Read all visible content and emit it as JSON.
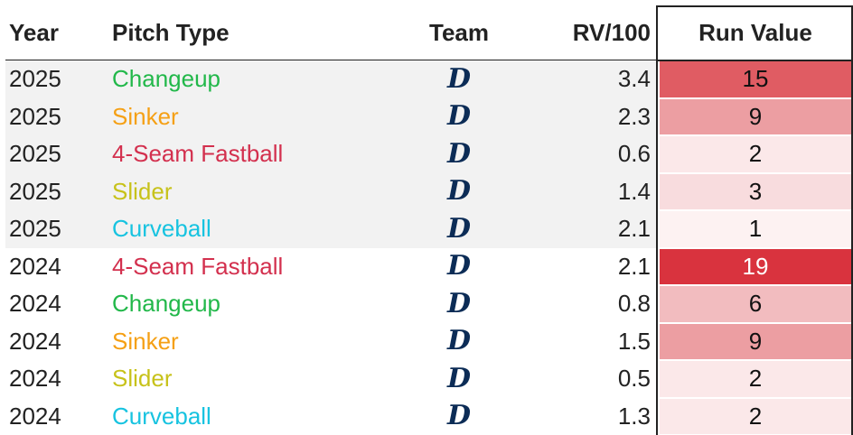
{
  "table": {
    "headers": {
      "year": "Year",
      "pitch_type": "Pitch Type",
      "team": "Team",
      "rv100": "RV/100",
      "run_value": "Run Value"
    },
    "team_logo_glyph": "D",
    "rows": [
      {
        "year": "2025",
        "pitch": "Changeup",
        "pitch_color": "#22b84a",
        "rv100": "3.4",
        "run_value": "15",
        "run_bg": "#e05c63",
        "run_fg": "#111111",
        "shaded": true
      },
      {
        "year": "2025",
        "pitch": "Sinker",
        "pitch_color": "#f5a015",
        "rv100": "2.3",
        "run_value": "9",
        "run_bg": "#ec9ea2",
        "run_fg": "#111111",
        "shaded": true
      },
      {
        "year": "2025",
        "pitch": "4-Seam Fastball",
        "pitch_color": "#d3304e",
        "rv100": "0.6",
        "run_value": "2",
        "run_bg": "#fbe8e9",
        "run_fg": "#111111",
        "shaded": true
      },
      {
        "year": "2025",
        "pitch": "Slider",
        "pitch_color": "#c7c21a",
        "rv100": "1.4",
        "run_value": "3",
        "run_bg": "#f8dcde",
        "run_fg": "#111111",
        "shaded": true
      },
      {
        "year": "2025",
        "pitch": "Curveball",
        "pitch_color": "#17c3e0",
        "rv100": "2.1",
        "run_value": "1",
        "run_bg": "#fdf2f2",
        "run_fg": "#111111",
        "shaded": true
      },
      {
        "year": "2024",
        "pitch": "4-Seam Fastball",
        "pitch_color": "#d3304e",
        "rv100": "2.1",
        "run_value": "19",
        "run_bg": "#d9333e",
        "run_fg": "#ffffff",
        "shaded": false
      },
      {
        "year": "2024",
        "pitch": "Changeup",
        "pitch_color": "#22b84a",
        "rv100": "0.8",
        "run_value": "6",
        "run_bg": "#f2bcbf",
        "run_fg": "#111111",
        "shaded": false
      },
      {
        "year": "2024",
        "pitch": "Sinker",
        "pitch_color": "#f5a015",
        "rv100": "1.5",
        "run_value": "9",
        "run_bg": "#ec9ea2",
        "run_fg": "#111111",
        "shaded": false
      },
      {
        "year": "2024",
        "pitch": "Slider",
        "pitch_color": "#c7c21a",
        "rv100": "0.5",
        "run_value": "2",
        "run_bg": "#fbe8e9",
        "run_fg": "#111111",
        "shaded": false
      },
      {
        "year": "2024",
        "pitch": "Curveball",
        "pitch_color": "#17c3e0",
        "rv100": "1.3",
        "run_value": "2",
        "run_bg": "#fbe8e9",
        "run_fg": "#111111",
        "shaded": false
      }
    ]
  },
  "chart_data": {
    "type": "table",
    "columns": [
      "Year",
      "Pitch Type",
      "Team",
      "RV/100",
      "Run Value"
    ],
    "rows": [
      [
        "2025",
        "Changeup",
        "DET",
        3.4,
        15
      ],
      [
        "2025",
        "Sinker",
        "DET",
        2.3,
        9
      ],
      [
        "2025",
        "4-Seam Fastball",
        "DET",
        0.6,
        2
      ],
      [
        "2025",
        "Slider",
        "DET",
        1.4,
        3
      ],
      [
        "2025",
        "Curveball",
        "DET",
        2.1,
        1
      ],
      [
        "2024",
        "4-Seam Fastball",
        "DET",
        2.1,
        19
      ],
      [
        "2024",
        "Changeup",
        "DET",
        0.8,
        6
      ],
      [
        "2024",
        "Sinker",
        "DET",
        1.5,
        9
      ],
      [
        "2024",
        "Slider",
        "DET",
        0.5,
        2
      ],
      [
        "2024",
        "Curveball",
        "DET",
        1.3,
        2
      ]
    ]
  }
}
